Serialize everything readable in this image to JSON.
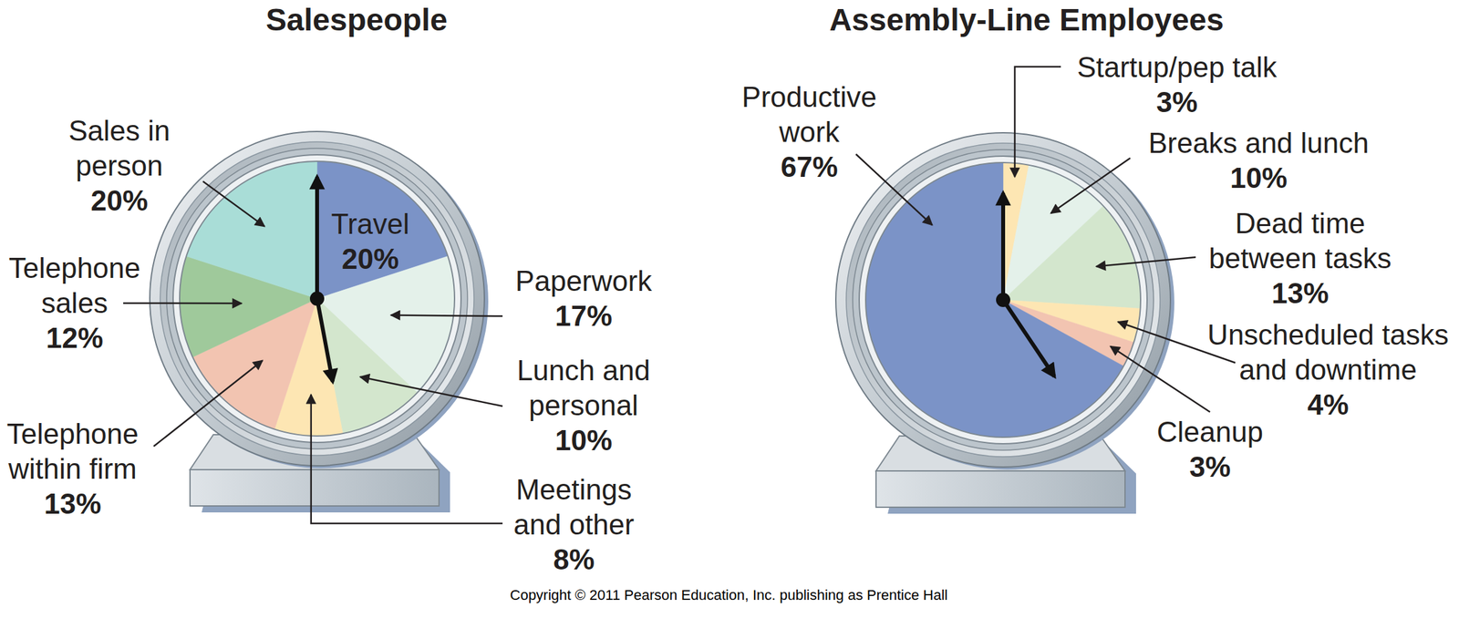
{
  "chart_data": [
    {
      "type": "pie",
      "title": "Salespeople",
      "categories": [
        "Travel",
        "Paperwork",
        "Lunch and personal",
        "Meetings and other",
        "Telephone within firm",
        "Telephone sales",
        "Sales in person"
      ],
      "values": [
        20,
        17,
        10,
        8,
        13,
        12,
        20
      ],
      "value_labels": [
        "20%",
        "17%",
        "10%",
        "8%",
        "13%",
        "12%",
        "20%"
      ],
      "colors": [
        "#7b93c7",
        "#e4f1ea",
        "#d3e6cd",
        "#fde6b3",
        "#f2c4b1",
        "#9fc99b",
        "#a9ddd7"
      ],
      "data_labels": true
    },
    {
      "type": "pie",
      "title": "Assembly-Line Employees",
      "categories": [
        "Startup/pep talk",
        "Breaks and lunch",
        "Dead time between tasks",
        "Unscheduled tasks and downtime",
        "Cleanup",
        "Productive work"
      ],
      "values": [
        3,
        10,
        13,
        4,
        3,
        67
      ],
      "value_labels": [
        "3%",
        "10%",
        "13%",
        "4%",
        "3%",
        "67%"
      ],
      "colors": [
        "#fde6b3",
        "#e4f1ea",
        "#d3e6cd",
        "#fde6b3",
        "#f2c4b1",
        "#7b93c7"
      ],
      "data_labels": true
    }
  ],
  "source": "Copyright © 2011 Pearson Education, Inc. publishing as Prentice Hall"
}
